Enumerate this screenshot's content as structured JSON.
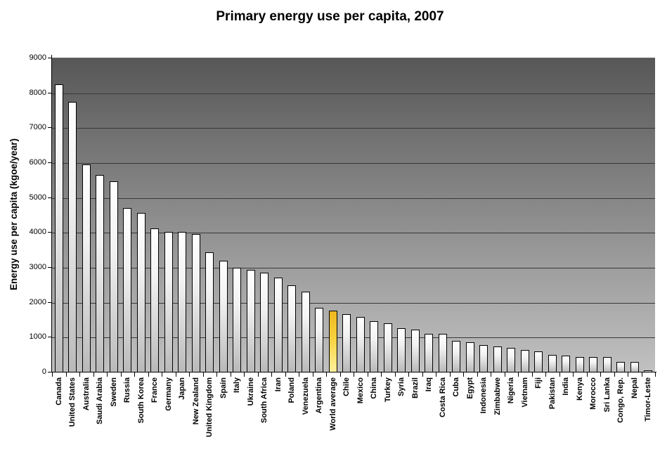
{
  "chart_data": {
    "type": "bar",
    "title": "Primary energy use per capita, 2007",
    "ylabel": "Energy use per capita (kgoe/year)",
    "xlabel": "",
    "ylim": [
      0,
      9000
    ],
    "ytick_step": 1000,
    "grid": "horizontal",
    "legend": "none",
    "categories": [
      "Canada",
      "United States",
      "Australia",
      "Saudi Arabia",
      "Sweden",
      "Russia",
      "South Korea",
      "France",
      "Germany",
      "Japan",
      "New Zealand",
      "United Kingdom",
      "Spain",
      "Italy",
      "Ukraine",
      "South Africa",
      "Iran",
      "Poland",
      "Venezuela",
      "Argentina",
      "World average",
      "Chile",
      "Mexico",
      "China",
      "Turkey",
      "Syria",
      "Brazil",
      "Iraq",
      "Costa Rica",
      "Cuba",
      "Egypt",
      "Indonesia",
      "Zimbabwe",
      "Nigeria",
      "Vietnam",
      "Fiji",
      "Pakistan",
      "India",
      "Kenya",
      "Morocco",
      "Sri Lanka",
      "Congo, Rep.",
      "Nepal",
      "Timor-Leste"
    ],
    "values": [
      8250,
      7750,
      5950,
      5650,
      5470,
      4710,
      4570,
      4125,
      4025,
      4025,
      3975,
      3440,
      3200,
      3000,
      2930,
      2850,
      2710,
      2495,
      2310,
      1855,
      1780,
      1680,
      1590,
      1470,
      1410,
      1270,
      1230,
      1105,
      1100,
      900,
      865,
      785,
      745,
      705,
      645,
      605,
      505,
      490,
      445,
      445,
      435,
      310,
      295,
      50
    ],
    "highlighted_category": "World average",
    "colors": {
      "bar_gradient_top": "#ffffff",
      "bar_gradient_bottom": "#b9b9b9",
      "highlight_gradient_top": "#edb71e",
      "highlight_gradient_mid": "#f8d23f",
      "highlight_gradient_bottom": "#fff09c",
      "plot_bg_top": "#575757",
      "plot_bg_bottom": "#c1c1c1",
      "gridline": "#383838",
      "axis": "#000000",
      "text": "#000000"
    }
  }
}
